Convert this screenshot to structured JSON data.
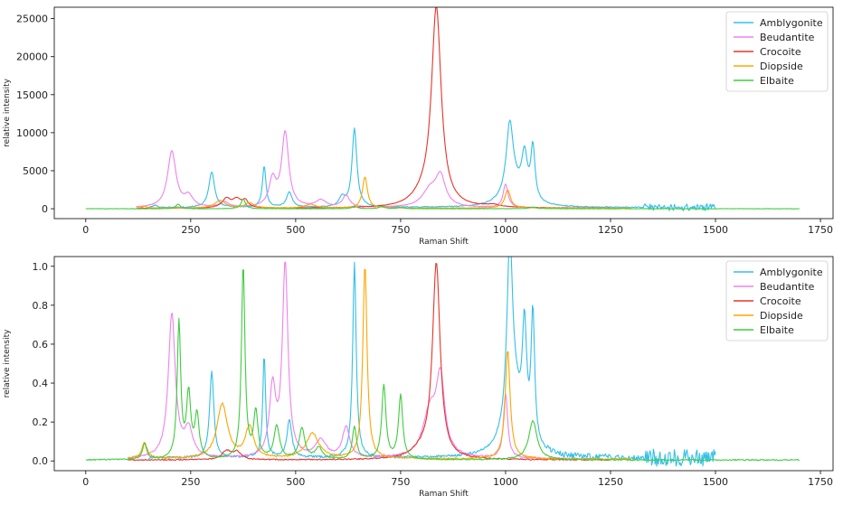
{
  "colors": {
    "Amblygonite": "#33bfe8",
    "Beudantite": "#ee82ee",
    "Crocoite": "#e8332a",
    "Diopside": "#ffa500",
    "Elbaite": "#3fcc3f"
  },
  "chart_data": [
    {
      "type": "line",
      "xlabel": "Raman Shift",
      "ylabel": "relative intensity",
      "xlim": [
        -75,
        1780
      ],
      "ylim": [
        -1300,
        26500
      ],
      "xticks": [
        0,
        250,
        500,
        750,
        1000,
        1250,
        1500,
        1750
      ],
      "yticks": [
        0,
        5000,
        10000,
        15000,
        20000,
        25000
      ],
      "ytick_labels": [
        "0",
        "5000",
        "10000",
        "15000",
        "20000",
        "25000"
      ],
      "grid": false,
      "legend_position": "top-right",
      "series": [
        {
          "name": "Amblygonite",
          "x_range": [
            150,
            1500
          ],
          "baseline": 150,
          "noise": 60,
          "noise_segments": [
            [
              1330,
              1500,
              450
            ]
          ],
          "peaks": [
            [
              165,
              300,
              6
            ],
            [
              300,
              4700,
              8
            ],
            [
              425,
              5500,
              5
            ],
            [
              485,
              2000,
              8
            ],
            [
              640,
              10300,
              7
            ],
            [
              610,
              1200,
              8
            ],
            [
              1010,
              9200,
              10
            ],
            [
              1045,
              5600,
              8
            ],
            [
              1065,
              7000,
              6
            ],
            [
              1020,
              2200,
              30
            ]
          ]
        },
        {
          "name": "Beudantite",
          "x_range": [
            120,
            1200
          ],
          "baseline": 100,
          "noise": 40,
          "peaks": [
            [
              205,
              7400,
              12
            ],
            [
              245,
              1400,
              12
            ],
            [
              330,
              700,
              12
            ],
            [
              445,
              3500,
              10
            ],
            [
              475,
              9800,
              10
            ],
            [
              560,
              900,
              15
            ],
            [
              620,
              1600,
              10
            ],
            [
              820,
              2200,
              22
            ],
            [
              845,
              3800,
              14
            ],
            [
              1000,
              3100,
              7
            ]
          ]
        },
        {
          "name": "Crocoite",
          "x_range": [
            120,
            1250
          ],
          "baseline": 50,
          "noise": 30,
          "peaks": [
            [
              335,
              1200,
              12
            ],
            [
              360,
              1100,
              12
            ],
            [
              380,
              900,
              8
            ],
            [
              835,
              26200,
              14
            ],
            [
              800,
              1000,
              30
            ],
            [
              970,
              300,
              20
            ]
          ]
        },
        {
          "name": "Diopside",
          "x_range": [
            120,
            1300
          ],
          "baseline": 80,
          "noise": 30,
          "peaks": [
            [
              140,
              200,
              8
            ],
            [
              320,
              1000,
              15
            ],
            [
              390,
              700,
              12
            ],
            [
              535,
              500,
              15
            ],
            [
              665,
              4100,
              7
            ],
            [
              1005,
              2400,
              8
            ]
          ]
        },
        {
          "name": "Elbaite",
          "x_range": [
            0,
            1700
          ],
          "baseline": 0,
          "noise": 25,
          "peaks": [
            [
              220,
              600,
              6
            ],
            [
              375,
              1300,
              6
            ],
            [
              640,
              300,
              8
            ],
            [
              705,
              300,
              8
            ],
            [
              750,
              200,
              8
            ],
            [
              1065,
              200,
              12
            ]
          ]
        }
      ]
    },
    {
      "type": "line",
      "xlabel": "Raman Shift",
      "ylabel": "relative intensity",
      "xlim": [
        -75,
        1780
      ],
      "ylim": [
        -0.05,
        1.05
      ],
      "xticks": [
        0,
        250,
        500,
        750,
        1000,
        1250,
        1500,
        1750
      ],
      "yticks": [
        0.0,
        0.2,
        0.4,
        0.6,
        0.8,
        1.0
      ],
      "ytick_labels": [
        "0.0",
        "0.2",
        "0.4",
        "0.6",
        "0.8",
        "1.0"
      ],
      "grid": false,
      "legend_position": "top-right",
      "series": [
        {
          "name": "Amblygonite",
          "x_range": [
            150,
            1500
          ],
          "baseline": 0.015,
          "noise": 0.006,
          "noise_segments": [
            [
              1330,
              1500,
              0.045
            ],
            [
              1100,
              1330,
              0.015
            ]
          ],
          "peaks": [
            [
              300,
              0.45,
              6
            ],
            [
              425,
              0.53,
              4
            ],
            [
              485,
              0.19,
              7
            ],
            [
              640,
              1.0,
              5
            ],
            [
              1010,
              0.89,
              8
            ],
            [
              1045,
              0.55,
              6
            ],
            [
              1065,
              0.67,
              5
            ],
            [
              1020,
              0.28,
              25
            ]
          ]
        },
        {
          "name": "Beudantite",
          "x_range": [
            100,
            1200
          ],
          "baseline": 0.01,
          "noise": 0.004,
          "peaks": [
            [
              205,
              0.74,
              10
            ],
            [
              245,
              0.14,
              12
            ],
            [
              445,
              0.35,
              9
            ],
            [
              475,
              0.99,
              8
            ],
            [
              560,
              0.09,
              15
            ],
            [
              620,
              0.16,
              10
            ],
            [
              820,
              0.23,
              20
            ],
            [
              845,
              0.38,
              12
            ],
            [
              1000,
              0.33,
              6
            ]
          ]
        },
        {
          "name": "Crocoite",
          "x_range": [
            100,
            1250
          ],
          "baseline": 0.005,
          "noise": 0.003,
          "peaks": [
            [
              335,
              0.045,
              12
            ],
            [
              360,
              0.04,
              12
            ],
            [
              835,
              1.0,
              11
            ],
            [
              800,
              0.04,
              30
            ]
          ]
        },
        {
          "name": "Diopside",
          "x_range": [
            100,
            1300
          ],
          "baseline": 0.01,
          "noise": 0.004,
          "peaks": [
            [
              140,
              0.08,
              8
            ],
            [
              325,
              0.28,
              15
            ],
            [
              390,
              0.16,
              12
            ],
            [
              540,
              0.13,
              18
            ],
            [
              665,
              1.0,
              6
            ],
            [
              1005,
              0.56,
              7
            ]
          ]
        },
        {
          "name": "Elbaite",
          "x_range": [
            0,
            1700
          ],
          "baseline": 0.005,
          "noise": 0.003,
          "peaks": [
            [
              140,
              0.08,
              6
            ],
            [
              222,
              0.7,
              5
            ],
            [
              245,
              0.33,
              6
            ],
            [
              265,
              0.22,
              6
            ],
            [
              375,
              1.0,
              5
            ],
            [
              405,
              0.24,
              6
            ],
            [
              455,
              0.17,
              8
            ],
            [
              515,
              0.16,
              8
            ],
            [
              555,
              0.06,
              10
            ],
            [
              640,
              0.17,
              6
            ],
            [
              710,
              0.38,
              6
            ],
            [
              750,
              0.33,
              6
            ],
            [
              1065,
              0.2,
              12
            ]
          ]
        }
      ]
    }
  ]
}
